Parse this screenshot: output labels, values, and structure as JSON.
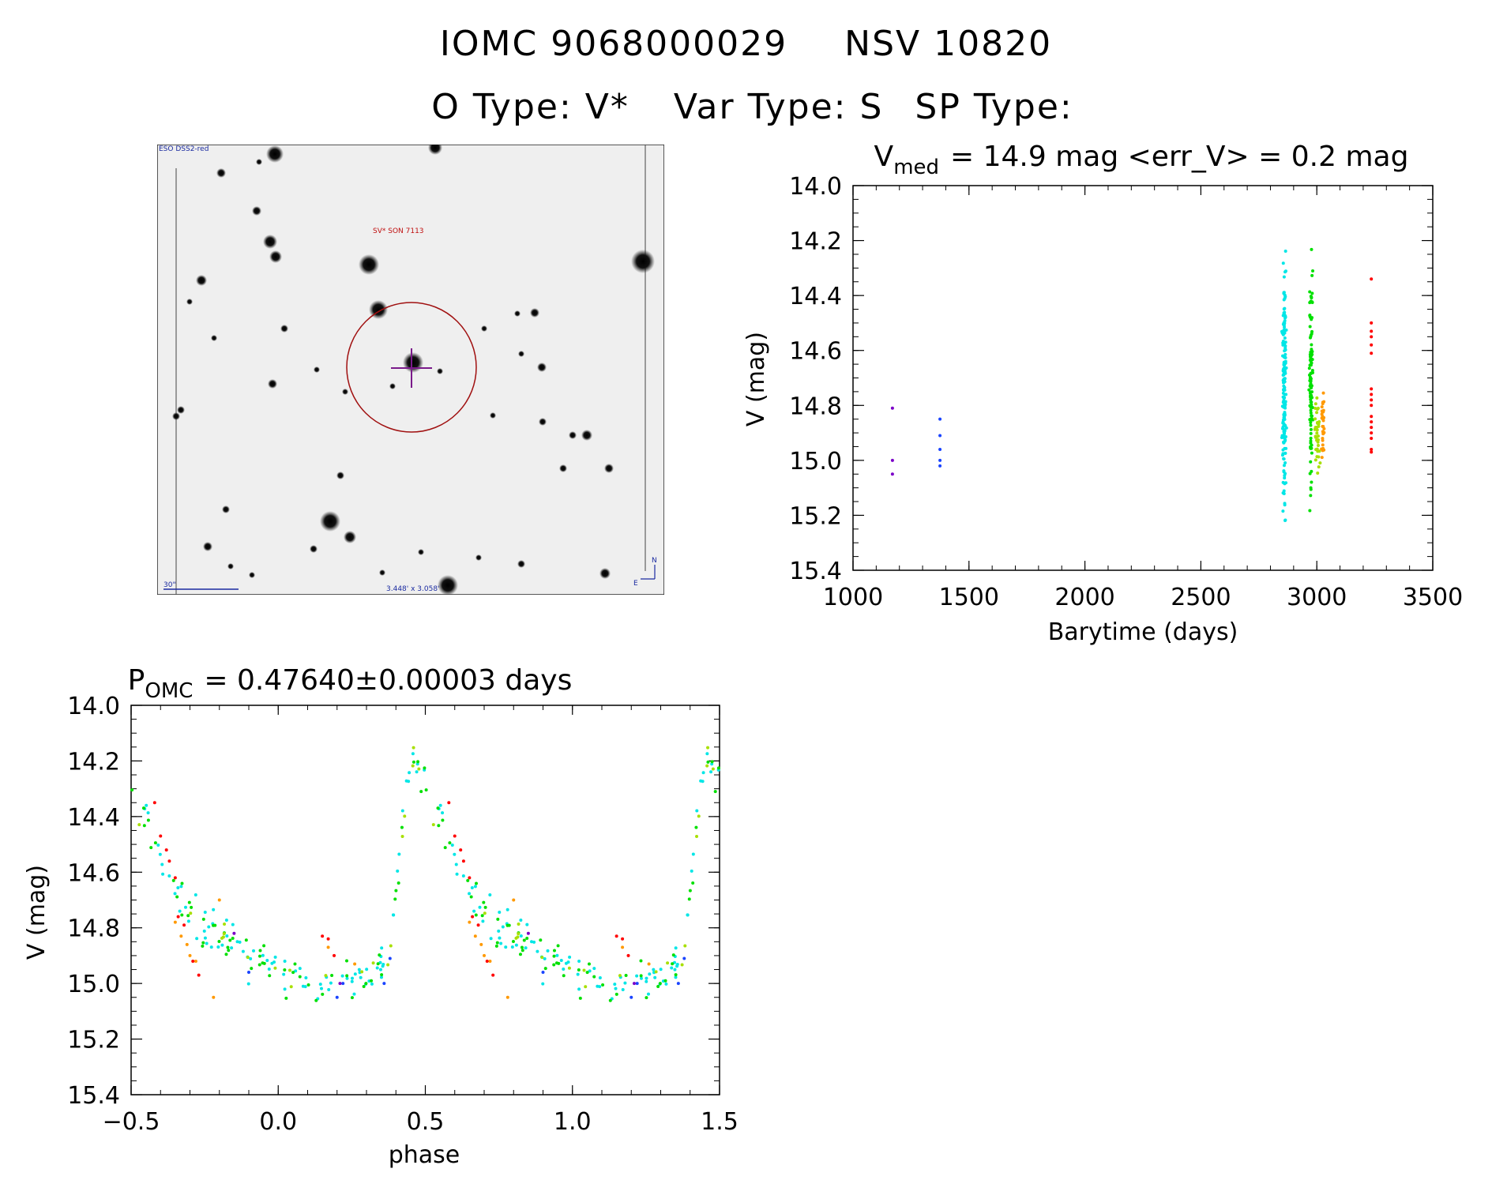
{
  "header": {
    "id_left": "IOMC 9068000029",
    "id_right": "NSV 10820",
    "otype": "O Type: V*",
    "vartype": "Var Type: S",
    "sptype": "SP Type:"
  },
  "finder": {
    "survey_label": "ESO DSS2-red",
    "object_label": "SV* SON 7113",
    "scale_label": "30\"",
    "fov_label": "3.448' x 3.058'",
    "north_label": "N",
    "east_label": "E"
  },
  "chart_data": [
    {
      "type": "scatter",
      "title_prefix": "V",
      "title_sub": "med",
      "title_rest": "= 14.9 mag <err_V> = 0.2 mag",
      "xlabel": "Barytime (days)",
      "ylabel": "V (mag)",
      "xlim": [
        1000,
        3500
      ],
      "ylim": [
        15.4,
        14.0
      ],
      "y_inverted": true,
      "xticks": [
        "1000",
        "1500",
        "2000",
        "2500",
        "3000",
        "3500"
      ],
      "yticks": [
        "14.0",
        "14.2",
        "14.4",
        "14.6",
        "14.8",
        "15.0",
        "15.2",
        "15.4"
      ],
      "series": [
        {
          "color": "#7b00c8",
          "points": [
            [
              1170,
              14.81
            ],
            [
              1170,
              15.0
            ],
            [
              1170,
              15.05
            ]
          ]
        },
        {
          "color": "#1a44ff",
          "points": [
            [
              1375,
              14.85
            ],
            [
              1375,
              14.91
            ],
            [
              1375,
              14.96
            ],
            [
              1375,
              15.0
            ],
            [
              1375,
              15.02
            ]
          ]
        },
        {
          "color": "#00e6e6",
          "x_center": 2860,
          "x_spread": 14,
          "y_range": [
            14.17,
            15.3
          ],
          "count": 170
        },
        {
          "color": "#00e000",
          "x_center": 2975,
          "x_spread": 12,
          "y_range": [
            14.15,
            15.24
          ],
          "count": 110
        },
        {
          "color": "#a8e000",
          "x_center": 3000,
          "x_spread": 20,
          "y_range": [
            14.7,
            15.1
          ],
          "count": 35
        },
        {
          "color": "#ff9900",
          "x_center": 3025,
          "x_spread": 12,
          "y_range": [
            14.66,
            15.05
          ],
          "count": 30
        },
        {
          "color": "#ff0000",
          "points": [
            [
              3235,
              14.34
            ],
            [
              3235,
              14.5
            ],
            [
              3235,
              14.53
            ],
            [
              3235,
              14.55
            ],
            [
              3235,
              14.58
            ],
            [
              3235,
              14.61
            ],
            [
              3235,
              14.74
            ],
            [
              3235,
              14.76
            ],
            [
              3235,
              14.78
            ],
            [
              3235,
              14.8
            ],
            [
              3235,
              14.84
            ],
            [
              3235,
              14.86
            ],
            [
              3235,
              14.88
            ],
            [
              3235,
              14.9
            ],
            [
              3235,
              14.92
            ],
            [
              3235,
              14.96
            ],
            [
              3235,
              14.97
            ]
          ]
        }
      ]
    },
    {
      "type": "scatter",
      "title_prefix": "P",
      "title_sub": "OMC",
      "title_rest": "= 0.47640±0.00003 days",
      "xlabel": "phase",
      "ylabel": "V (mag)",
      "xlim": [
        -0.5,
        1.5
      ],
      "ylim": [
        15.4,
        14.0
      ],
      "y_inverted": true,
      "xticks": [
        "−0.5",
        "0.0",
        "0.5",
        "1.0",
        "1.5"
      ],
      "yticks": [
        "14.0",
        "14.2",
        "14.4",
        "14.6",
        "14.8",
        "15.0",
        "15.2",
        "15.4"
      ],
      "light_curve_template": [
        [
          -0.5,
          14.28
        ],
        [
          -0.45,
          14.42
        ],
        [
          -0.35,
          14.65
        ],
        [
          -0.25,
          14.8
        ],
        [
          -0.1,
          14.9
        ],
        [
          0.05,
          14.98
        ],
        [
          0.2,
          15.0
        ],
        [
          0.3,
          15.0
        ],
        [
          0.38,
          14.9
        ],
        [
          0.42,
          14.45
        ],
        [
          0.46,
          14.18
        ],
        [
          0.5,
          14.28
        ]
      ],
      "series": [
        {
          "color": "#00e6e6",
          "count": 90,
          "scatter": 0.14
        },
        {
          "color": "#00e000",
          "count": 60,
          "scatter": 0.12
        },
        {
          "color": "#a8e000",
          "count": 20,
          "scatter": 0.1
        },
        {
          "color": "#ff9900",
          "points": [
            [
              -0.35,
              14.78
            ],
            [
              -0.33,
              14.83
            ],
            [
              -0.31,
              14.86
            ],
            [
              -0.3,
              14.9
            ],
            [
              -0.28,
              14.92
            ],
            [
              -0.22,
              15.05
            ],
            [
              -0.2,
              14.7
            ],
            [
              0.17,
              14.87
            ],
            [
              0.26,
              14.93
            ]
          ]
        },
        {
          "color": "#ff0000",
          "points": [
            [
              -0.42,
              14.35
            ],
            [
              -0.4,
              14.47
            ],
            [
              -0.38,
              14.52
            ],
            [
              -0.37,
              14.56
            ],
            [
              -0.35,
              14.62
            ],
            [
              -0.34,
              14.76
            ],
            [
              -0.32,
              14.79
            ],
            [
              -0.29,
              14.92
            ],
            [
              -0.27,
              14.97
            ],
            [
              0.15,
              14.83
            ],
            [
              0.17,
              14.84
            ],
            [
              0.19,
              14.9
            ]
          ]
        },
        {
          "color": "#1a44ff",
          "points": [
            [
              -0.1,
              14.96
            ],
            [
              0.2,
              15.05
            ],
            [
              0.22,
              15.0
            ],
            [
              0.36,
              15.0
            ],
            [
              0.38,
              14.91
            ]
          ]
        },
        {
          "color": "#7b00c8",
          "points": [
            [
              -0.15,
              14.82
            ],
            [
              0.21,
              15.0
            ]
          ]
        }
      ]
    }
  ]
}
